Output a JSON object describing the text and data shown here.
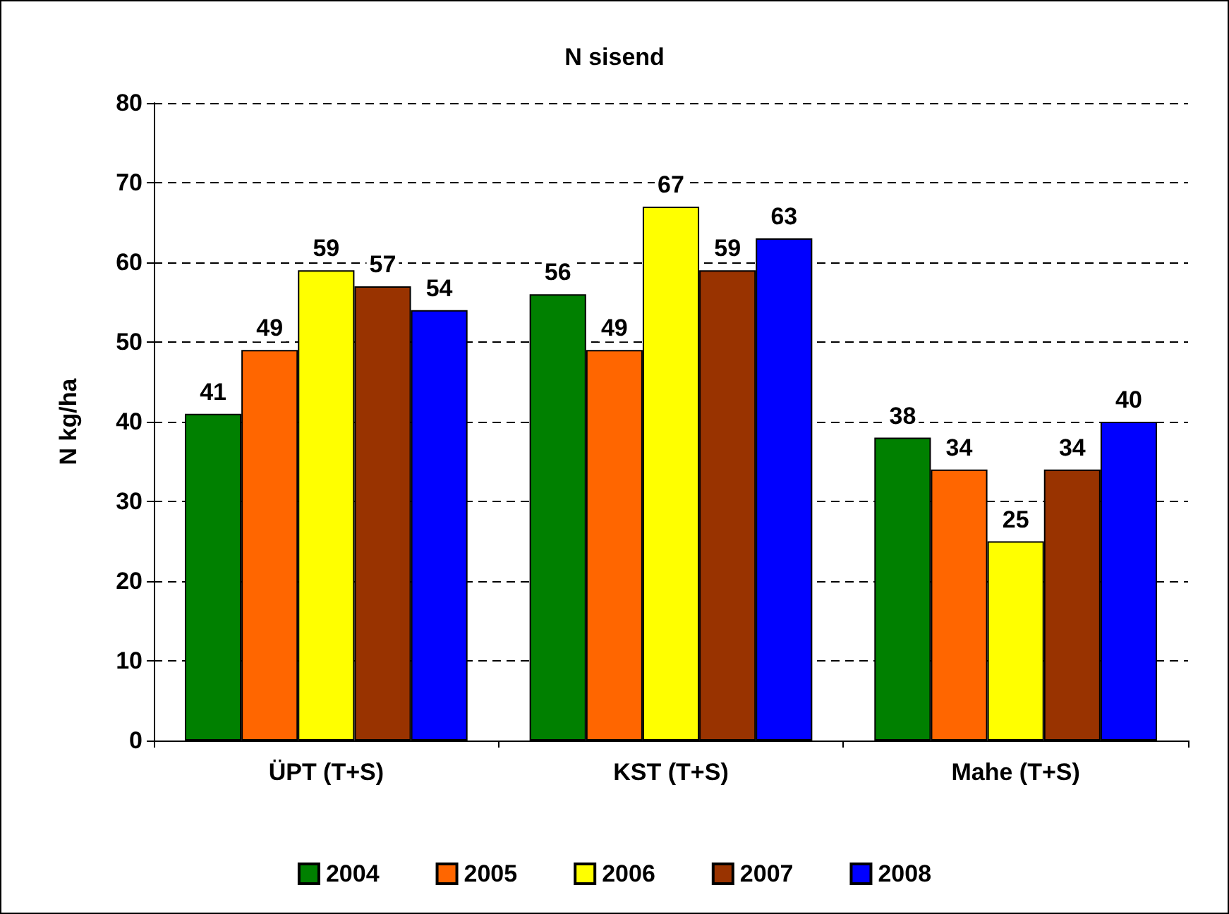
{
  "chart_data": {
    "type": "bar",
    "title": "N sisend",
    "ylabel": "N kg/ha",
    "categories": [
      "ÜPT (T+S)",
      "KST (T+S)",
      "Mahe (T+S)"
    ],
    "series": [
      {
        "name": "2004",
        "color": "#008000",
        "values": [
          41,
          56,
          38
        ]
      },
      {
        "name": "2005",
        "color": "#ff6600",
        "values": [
          49,
          49,
          34
        ]
      },
      {
        "name": "2006",
        "color": "#ffff00",
        "values": [
          59,
          67,
          25
        ]
      },
      {
        "name": "2007",
        "color": "#993300",
        "values": [
          57,
          59,
          34
        ]
      },
      {
        "name": "2008",
        "color": "#0000ff",
        "values": [
          54,
          63,
          40
        ]
      }
    ],
    "ylim": [
      0,
      80
    ],
    "yticks": [
      0,
      10,
      20,
      30,
      40,
      50,
      60,
      70,
      80
    ],
    "grid": "y",
    "legend": "bottom",
    "data_labels": true
  }
}
